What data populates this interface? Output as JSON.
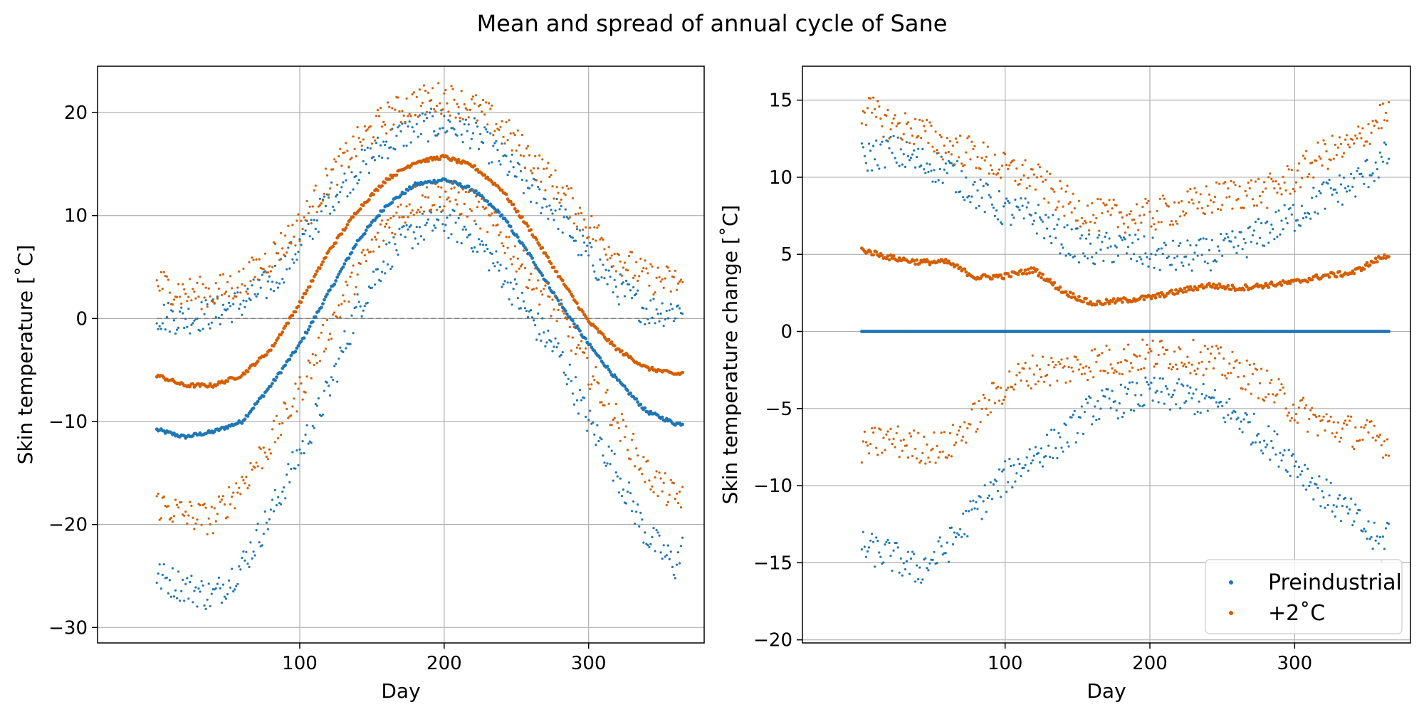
{
  "figure": {
    "title": "Mean and spread of annual cycle of Sane"
  },
  "colors": {
    "preindustrial": "#1f77b4",
    "warming": "#d55e00",
    "grid": "#b0b0b0",
    "zero_line": "#808080"
  },
  "chart_data": [
    {
      "type": "scatter",
      "xlabel": "Day",
      "ylabel": "Skin temperature [$^{\\circ}$C]",
      "ylabel_display": "Skin temperature [˚C]",
      "xlim": [
        -40,
        380
      ],
      "ylim": [
        -31.5,
        24.5
      ],
      "xticks": [
        100,
        200,
        300
      ],
      "yticks": [
        -30,
        -20,
        -10,
        0,
        10,
        20
      ],
      "ytick_labels": [
        "−30",
        "−20",
        "−10",
        "0",
        "10",
        "20"
      ],
      "grid": true,
      "zero_line": "dashed",
      "series": [
        {
          "color": "preindustrial",
          "role": "mean",
          "x": [
            1,
            20,
            40,
            60,
            80,
            100,
            120,
            140,
            160,
            180,
            200,
            220,
            240,
            260,
            280,
            300,
            320,
            340,
            360,
            365
          ],
          "y": [
            -10.8,
            -11.5,
            -11.0,
            -10.0,
            -6.5,
            -2.5,
            2.5,
            7.5,
            11.0,
            13.0,
            13.5,
            12.5,
            10.0,
            6.0,
            1.5,
            -2.5,
            -6.0,
            -9.0,
            -10.2,
            -10.2
          ]
        },
        {
          "color": "preindustrial",
          "role": "upper",
          "x": [
            1,
            20,
            40,
            60,
            80,
            100,
            120,
            140,
            160,
            180,
            200,
            220,
            240,
            260,
            280,
            300,
            320,
            340,
            360,
            365
          ],
          "y": [
            0.3,
            0.0,
            0.5,
            1.5,
            3.5,
            7.0,
            11.5,
            14.5,
            17.0,
            18.5,
            19.0,
            18.0,
            15.5,
            12.5,
            10.0,
            6.0,
            3.0,
            0.8,
            0.8,
            1.2
          ]
        },
        {
          "color": "preindustrial",
          "role": "lower",
          "x": [
            1,
            20,
            40,
            60,
            80,
            100,
            120,
            140,
            160,
            180,
            200,
            220,
            240,
            260,
            280,
            300,
            320,
            340,
            360,
            365
          ],
          "y": [
            -25.0,
            -26.0,
            -27.0,
            -24.0,
            -19.0,
            -13.0,
            -7.0,
            1.0,
            6.0,
            8.5,
            9.5,
            8.0,
            4.5,
            0.0,
            -3.5,
            -10.0,
            -15.0,
            -21.0,
            -24.0,
            -22.5
          ]
        },
        {
          "color": "warming",
          "role": "mean",
          "x": [
            1,
            20,
            40,
            60,
            80,
            100,
            120,
            140,
            160,
            180,
            200,
            220,
            240,
            260,
            280,
            300,
            320,
            340,
            360,
            365
          ],
          "y": [
            -5.5,
            -6.5,
            -6.5,
            -5.5,
            -3.0,
            1.5,
            6.5,
            10.5,
            13.5,
            15.2,
            15.7,
            14.8,
            12.5,
            8.5,
            4.0,
            -0.3,
            -3.0,
            -4.8,
            -5.4,
            -5.3
          ]
        },
        {
          "color": "warming",
          "role": "upper",
          "x": [
            1,
            20,
            40,
            60,
            80,
            100,
            120,
            140,
            160,
            180,
            200,
            220,
            240,
            260,
            280,
            300,
            320,
            340,
            360,
            365
          ],
          "y": [
            3.5,
            2.5,
            2.5,
            3.5,
            6.0,
            9.0,
            13.5,
            17.0,
            19.5,
            21.0,
            21.5,
            20.5,
            18.5,
            15.5,
            12.5,
            9.0,
            6.0,
            4.0,
            3.5,
            3.5
          ]
        },
        {
          "color": "warming",
          "role": "lower",
          "x": [
            1,
            20,
            40,
            60,
            80,
            100,
            120,
            140,
            160,
            180,
            200,
            220,
            240,
            260,
            280,
            300,
            320,
            340,
            360,
            365
          ],
          "y": [
            -18.0,
            -19.0,
            -19.5,
            -16.0,
            -12.0,
            -7.0,
            -1.0,
            4.5,
            9.0,
            11.5,
            12.0,
            11.0,
            8.0,
            4.0,
            0.5,
            -5.0,
            -10.0,
            -15.0,
            -17.5,
            -17.0
          ]
        }
      ]
    },
    {
      "type": "scatter",
      "xlabel": "Day",
      "ylabel": "Skin temperature change [$^{\\circ}$C]",
      "ylabel_display": "Skin temperature change [˚C]",
      "xlim": [
        -40,
        380
      ],
      "ylim": [
        -20.2,
        17.2
      ],
      "xticks": [
        100,
        200,
        300
      ],
      "yticks": [
        -20,
        -15,
        -10,
        -5,
        0,
        5,
        10,
        15
      ],
      "ytick_labels": [
        "−20",
        "−15",
        "−10",
        "−5",
        "0",
        "5",
        "10",
        "15"
      ],
      "grid": true,
      "legend": {
        "placement": "lower-right",
        "entries": [
          "Preindustrial",
          "+2˚C"
        ]
      },
      "series": [
        {
          "name": "Preindustrial",
          "color": "preindustrial",
          "role": "mean",
          "x": [
            1,
            365
          ],
          "y": [
            0.0,
            0.0
          ]
        },
        {
          "color": "preindustrial",
          "role": "upper",
          "x": [
            1,
            20,
            40,
            60,
            80,
            100,
            120,
            140,
            160,
            180,
            200,
            220,
            240,
            260,
            280,
            300,
            320,
            340,
            360,
            365
          ],
          "y": [
            11.2,
            11.8,
            11.0,
            10.5,
            9.0,
            7.8,
            7.5,
            6.0,
            5.2,
            5.5,
            5.0,
            4.8,
            5.0,
            5.5,
            6.5,
            7.5,
            8.8,
            9.5,
            11.0,
            11.5
          ]
        },
        {
          "color": "preindustrial",
          "role": "lower",
          "x": [
            1,
            20,
            40,
            60,
            80,
            100,
            120,
            140,
            160,
            180,
            200,
            220,
            240,
            260,
            280,
            300,
            320,
            340,
            360,
            365
          ],
          "y": [
            -14.0,
            -14.5,
            -15.5,
            -14.0,
            -11.5,
            -9.5,
            -8.0,
            -7.0,
            -5.0,
            -4.5,
            -4.0,
            -4.2,
            -4.5,
            -5.5,
            -7.0,
            -8.5,
            -10.5,
            -12.0,
            -14.0,
            -12.5
          ]
        },
        {
          "name": "+2˚C",
          "color": "warming",
          "role": "mean",
          "x": [
            1,
            20,
            40,
            60,
            80,
            100,
            120,
            140,
            160,
            180,
            200,
            220,
            240,
            260,
            280,
            300,
            320,
            340,
            360,
            365
          ],
          "y": [
            5.3,
            4.8,
            4.5,
            4.5,
            3.5,
            3.6,
            4.0,
            2.6,
            1.8,
            2.0,
            2.2,
            2.6,
            3.0,
            2.8,
            3.0,
            3.2,
            3.6,
            3.8,
            4.8,
            4.9
          ]
        },
        {
          "color": "warming",
          "role": "upper",
          "x": [
            1,
            20,
            40,
            60,
            80,
            100,
            120,
            140,
            160,
            180,
            200,
            220,
            240,
            260,
            280,
            300,
            320,
            340,
            360,
            365
          ],
          "y": [
            14.5,
            13.5,
            13.0,
            12.0,
            11.5,
            10.5,
            10.0,
            8.5,
            7.5,
            7.5,
            7.5,
            8.0,
            8.5,
            9.0,
            9.0,
            10.0,
            11.5,
            12.0,
            14.0,
            13.8
          ]
        },
        {
          "color": "warming",
          "role": "lower",
          "x": [
            1,
            20,
            40,
            60,
            80,
            100,
            120,
            140,
            160,
            180,
            200,
            220,
            240,
            260,
            280,
            300,
            320,
            340,
            360,
            365
          ],
          "y": [
            -7.5,
            -7.0,
            -7.5,
            -7.5,
            -5.5,
            -3.5,
            -2.5,
            -2.5,
            -2.0,
            -1.8,
            -1.5,
            -1.5,
            -1.8,
            -2.5,
            -3.5,
            -5.0,
            -6.0,
            -6.5,
            -7.0,
            -7.5
          ]
        }
      ]
    }
  ]
}
